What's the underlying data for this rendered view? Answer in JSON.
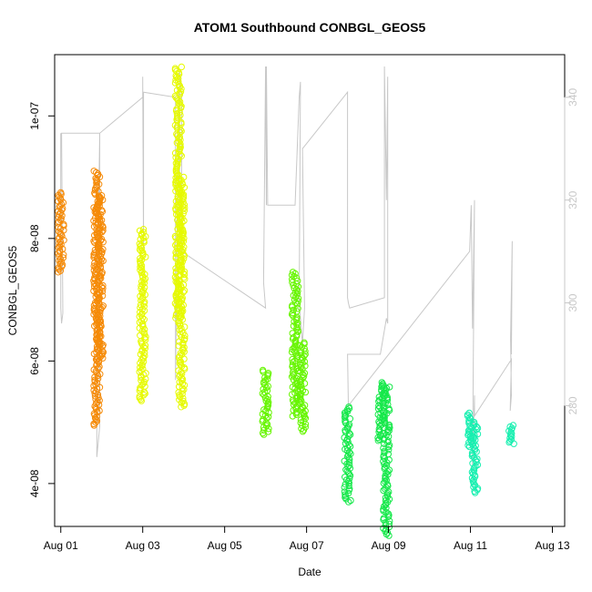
{
  "chart_data": {
    "type": "scatter",
    "title": "ATOM1 Southbound CONBGL_GEOS5",
    "xlabel": "Date",
    "ylabel": "CONBGL_GEOS5",
    "xlim": [
      -0.15,
      12.3
    ],
    "ylim": [
      3.3e-08,
      1.1e-07
    ],
    "y2lim": [
      256.5,
      348.3
    ],
    "x_ticks": [
      {
        "value": 0,
        "label": "Aug 01"
      },
      {
        "value": 2,
        "label": "Aug 03"
      },
      {
        "value": 4,
        "label": "Aug 05"
      },
      {
        "value": 6,
        "label": "Aug 07"
      },
      {
        "value": 8,
        "label": "Aug 09"
      },
      {
        "value": 10,
        "label": "Aug 11"
      },
      {
        "value": 12,
        "label": "Aug 13"
      }
    ],
    "y_ticks": [
      {
        "value": 4e-08,
        "label": "4e-08"
      },
      {
        "value": 6e-08,
        "label": "6e-08"
      },
      {
        "value": 8e-08,
        "label": "8e-08"
      },
      {
        "value": 1e-07,
        "label": "1e-07"
      }
    ],
    "y2_ticks": [
      {
        "value": 280,
        "label": "280"
      },
      {
        "value": 300,
        "label": "300"
      },
      {
        "value": 320,
        "label": "320"
      },
      {
        "value": 340,
        "label": "340"
      }
    ],
    "grid": false,
    "legend": "none",
    "colors": {
      "secondary_line": "#c8c8c8",
      "right_axis": "#c8c8c8",
      "axis": "#000000"
    },
    "clusters": [
      {
        "x": 0.0,
        "ymin": 7.45e-08,
        "ymax": 8.75e-08,
        "color": "#f58a07"
      },
      {
        "x": 0.88,
        "ymin": 4.95e-08,
        "ymax": 9.1e-08,
        "color": "#f58a07"
      },
      {
        "x": 0.96,
        "ymin": 6e-08,
        "ymax": 8.7e-08,
        "color": "#f58a07"
      },
      {
        "x": 2.0,
        "ymin": 5.35e-08,
        "ymax": 8.15e-08,
        "color": "#e6fa00"
      },
      {
        "x": 2.87,
        "ymin": 6.7e-08,
        "ymax": 1.08e-07,
        "color": "#e6fa00"
      },
      {
        "x": 2.95,
        "ymin": 5.25e-08,
        "ymax": 9e-08,
        "color": "#e6fa00"
      },
      {
        "x": 5.0,
        "ymin": 4.8e-08,
        "ymax": 5.85e-08,
        "color": "#66f500"
      },
      {
        "x": 5.72,
        "ymin": 5.1e-08,
        "ymax": 7.45e-08,
        "color": "#66f500"
      },
      {
        "x": 5.9,
        "ymin": 4.85e-08,
        "ymax": 6.3e-08,
        "color": "#66f500"
      },
      {
        "x": 7.0,
        "ymin": 3.7e-08,
        "ymax": 5.25e-08,
        "color": "#16e84a"
      },
      {
        "x": 7.82,
        "ymin": 4.7e-08,
        "ymax": 5.65e-08,
        "color": "#16e84a"
      },
      {
        "x": 7.95,
        "ymin": 3.15e-08,
        "ymax": 5.6e-08,
        "color": "#16e84a"
      },
      {
        "x": 10.0,
        "ymin": 4.6e-08,
        "ymax": 5.15e-08,
        "color": "#18efb0"
      },
      {
        "x": 10.1,
        "ymin": 3.85e-08,
        "ymax": 5e-08,
        "color": "#18efb0"
      },
      {
        "x": 11.0,
        "ymin": 4.65e-08,
        "ymax": 4.95e-08,
        "color": "#18efb0"
      }
    ],
    "secondary_series": {
      "axis": "right",
      "color": "#c8c8c8",
      "points": [
        [
          0.0,
          333
        ],
        [
          0.0,
          300
        ],
        [
          0.0,
          299
        ],
        [
          0.02,
          296
        ],
        [
          0.05,
          298
        ],
        [
          0.02,
          333
        ],
        [
          0.95,
          333
        ],
        [
          0.95,
          276
        ],
        [
          0.88,
          270
        ],
        [
          0.88,
          296
        ],
        [
          0.95,
          333
        ],
        [
          2.0,
          340
        ],
        [
          2.0,
          344
        ],
        [
          2.02,
          310
        ],
        [
          2.02,
          341
        ],
        [
          2.8,
          340
        ],
        [
          2.8,
          285
        ],
        [
          2.88,
          342
        ],
        [
          2.9,
          310
        ],
        [
          2.9,
          345
        ],
        [
          2.95,
          340
        ],
        [
          2.95,
          310
        ],
        [
          5.0,
          299
        ],
        [
          4.95,
          304
        ],
        [
          5.0,
          346
        ],
        [
          5.02,
          319
        ],
        [
          5.02,
          346
        ],
        [
          5.05,
          319
        ],
        [
          5.72,
          319
        ],
        [
          5.82,
          340
        ],
        [
          5.85,
          343
        ],
        [
          5.82,
          300
        ],
        [
          5.9,
          292
        ],
        [
          5.95,
          299
        ],
        [
          5.9,
          330
        ],
        [
          7.0,
          341
        ],
        [
          7.0,
          301
        ],
        [
          7.02,
          300
        ],
        [
          7.05,
          299
        ],
        [
          7.9,
          301
        ],
        [
          7.9,
          346
        ],
        [
          7.95,
          320
        ],
        [
          7.98,
          344
        ],
        [
          7.98,
          296
        ],
        [
          7.95,
          297
        ],
        [
          7.8,
          290
        ],
        [
          7.0,
          290
        ],
        [
          7.02,
          280
        ],
        [
          9.98,
          310
        ],
        [
          10.02,
          319
        ],
        [
          10.05,
          295
        ],
        [
          10.1,
          320
        ],
        [
          10.05,
          268
        ],
        [
          10.1,
          282
        ],
        [
          10.1,
          278
        ],
        [
          11.0,
          289
        ],
        [
          10.97,
          279
        ],
        [
          11.0,
          282
        ],
        [
          10.98,
          293
        ],
        [
          11.02,
          312
        ],
        [
          11.0,
          290
        ]
      ]
    }
  }
}
